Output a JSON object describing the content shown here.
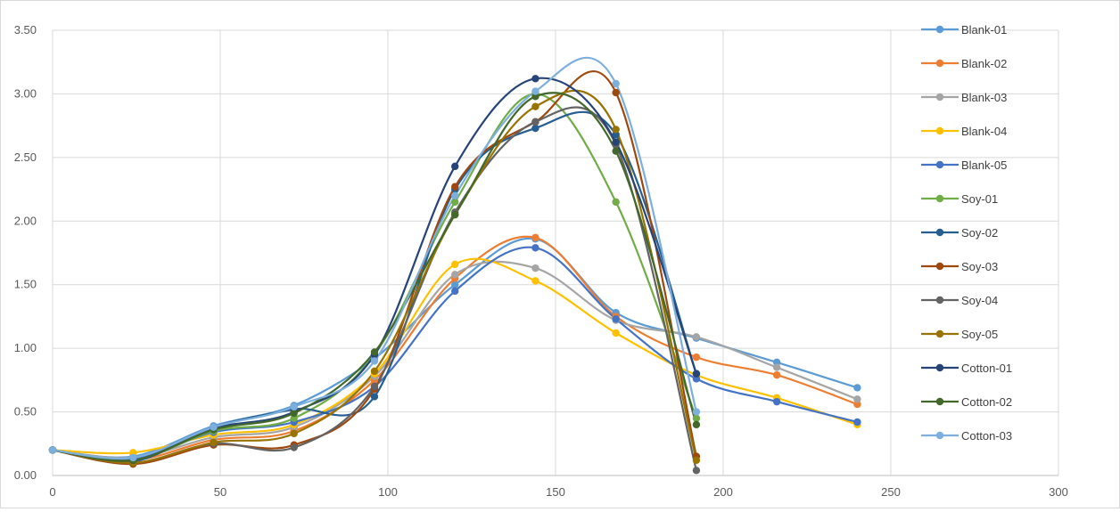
{
  "chart_data": {
    "type": "line",
    "title": "",
    "xlabel": "",
    "ylabel": "",
    "xlim": [
      0,
      300
    ],
    "ylim": [
      0,
      3.5
    ],
    "x_ticks": [
      "0",
      "50",
      "100",
      "150",
      "200",
      "250",
      "300"
    ],
    "y_ticks": [
      "0.00",
      "0.50",
      "1.00",
      "1.50",
      "2.00",
      "2.50",
      "3.00",
      "3.50"
    ],
    "grid": true,
    "legend_position": "right",
    "series": [
      {
        "name": "Blank-01",
        "color": "#5b9bd5",
        "points": [
          [
            0,
            0.2
          ],
          [
            24,
            0.15
          ],
          [
            48,
            0.39
          ],
          [
            72,
            0.55
          ],
          [
            96,
            0.92
          ],
          [
            120,
            1.5
          ],
          [
            144,
            1.86
          ],
          [
            168,
            1.28
          ],
          [
            192,
            1.08
          ],
          [
            216,
            0.89
          ],
          [
            240,
            0.69
          ]
        ]
      },
      {
        "name": "Blank-02",
        "color": "#ed7d31",
        "points": [
          [
            0,
            0.2
          ],
          [
            24,
            0.12
          ],
          [
            48,
            0.28
          ],
          [
            72,
            0.35
          ],
          [
            96,
            0.75
          ],
          [
            120,
            1.55
          ],
          [
            144,
            1.87
          ],
          [
            168,
            1.25
          ],
          [
            192,
            0.93
          ],
          [
            216,
            0.79
          ],
          [
            240,
            0.56
          ]
        ]
      },
      {
        "name": "Blank-03",
        "color": "#a5a5a5",
        "points": [
          [
            0,
            0.2
          ],
          [
            24,
            0.14
          ],
          [
            48,
            0.3
          ],
          [
            72,
            0.38
          ],
          [
            96,
            0.78
          ],
          [
            120,
            1.58
          ],
          [
            144,
            1.63
          ],
          [
            168,
            1.22
          ],
          [
            192,
            1.09
          ],
          [
            216,
            0.85
          ],
          [
            240,
            0.6
          ]
        ]
      },
      {
        "name": "Blank-04",
        "color": "#ffc000",
        "points": [
          [
            0,
            0.2
          ],
          [
            24,
            0.18
          ],
          [
            48,
            0.32
          ],
          [
            72,
            0.4
          ],
          [
            96,
            0.8
          ],
          [
            120,
            1.66
          ],
          [
            144,
            1.53
          ],
          [
            168,
            1.12
          ],
          [
            192,
            0.79
          ],
          [
            216,
            0.61
          ],
          [
            240,
            0.4
          ]
        ]
      },
      {
        "name": "Blank-05",
        "color": "#4472c4",
        "points": [
          [
            0,
            0.2
          ],
          [
            24,
            0.13
          ],
          [
            48,
            0.34
          ],
          [
            72,
            0.42
          ],
          [
            96,
            0.7
          ],
          [
            120,
            1.45
          ],
          [
            144,
            1.79
          ],
          [
            168,
            1.23
          ],
          [
            192,
            0.76
          ],
          [
            216,
            0.58
          ],
          [
            240,
            0.42
          ]
        ]
      },
      {
        "name": "Soy-01",
        "color": "#70ad47",
        "points": [
          [
            0,
            0.2
          ],
          [
            24,
            0.12
          ],
          [
            48,
            0.35
          ],
          [
            72,
            0.45
          ],
          [
            96,
            0.95
          ],
          [
            120,
            2.15
          ],
          [
            144,
            3.0
          ],
          [
            168,
            2.15
          ],
          [
            192,
            0.45
          ]
        ]
      },
      {
        "name": "Soy-02",
        "color": "#255e91",
        "points": [
          [
            0,
            0.2
          ],
          [
            24,
            0.11
          ],
          [
            48,
            0.38
          ],
          [
            72,
            0.52
          ],
          [
            96,
            0.62
          ],
          [
            120,
            2.25
          ],
          [
            144,
            2.73
          ],
          [
            168,
            2.68
          ],
          [
            192,
            0.8
          ]
        ]
      },
      {
        "name": "Soy-03",
        "color": "#9e480e",
        "points": [
          [
            0,
            0.2
          ],
          [
            24,
            0.09
          ],
          [
            48,
            0.24
          ],
          [
            72,
            0.24
          ],
          [
            96,
            0.68
          ],
          [
            120,
            2.27
          ],
          [
            144,
            2.78
          ],
          [
            168,
            3.01
          ],
          [
            192,
            0.15
          ]
        ]
      },
      {
        "name": "Soy-04",
        "color": "#636363",
        "points": [
          [
            0,
            0.2
          ],
          [
            24,
            0.1
          ],
          [
            48,
            0.25
          ],
          [
            72,
            0.22
          ],
          [
            96,
            0.7
          ],
          [
            120,
            2.07
          ],
          [
            144,
            2.78
          ],
          [
            168,
            2.6
          ],
          [
            192,
            0.04
          ]
        ]
      },
      {
        "name": "Soy-05",
        "color": "#997300",
        "points": [
          [
            0,
            0.2
          ],
          [
            24,
            0.1
          ],
          [
            48,
            0.26
          ],
          [
            72,
            0.33
          ],
          [
            96,
            0.82
          ],
          [
            120,
            2.05
          ],
          [
            144,
            2.9
          ],
          [
            168,
            2.72
          ],
          [
            192,
            0.12
          ]
        ]
      },
      {
        "name": "Cotton-01",
        "color": "#264478",
        "points": [
          [
            0,
            0.2
          ],
          [
            24,
            0.12
          ],
          [
            48,
            0.37
          ],
          [
            72,
            0.5
          ],
          [
            96,
            0.95
          ],
          [
            120,
            2.43
          ],
          [
            144,
            3.12
          ],
          [
            168,
            2.62
          ],
          [
            192,
            0.8
          ]
        ]
      },
      {
        "name": "Cotton-02",
        "color": "#43682b",
        "points": [
          [
            0,
            0.2
          ],
          [
            24,
            0.12
          ],
          [
            48,
            0.36
          ],
          [
            72,
            0.49
          ],
          [
            96,
            0.97
          ],
          [
            120,
            2.05
          ],
          [
            144,
            2.98
          ],
          [
            168,
            2.55
          ],
          [
            192,
            0.4
          ]
        ]
      },
      {
        "name": "Cotton-03",
        "color": "#7cafdd",
        "points": [
          [
            0,
            0.2
          ],
          [
            24,
            0.14
          ],
          [
            48,
            0.38
          ],
          [
            72,
            0.54
          ],
          [
            96,
            0.9
          ],
          [
            120,
            2.2
          ],
          [
            144,
            3.02
          ],
          [
            168,
            3.08
          ],
          [
            192,
            0.5
          ]
        ]
      }
    ]
  }
}
